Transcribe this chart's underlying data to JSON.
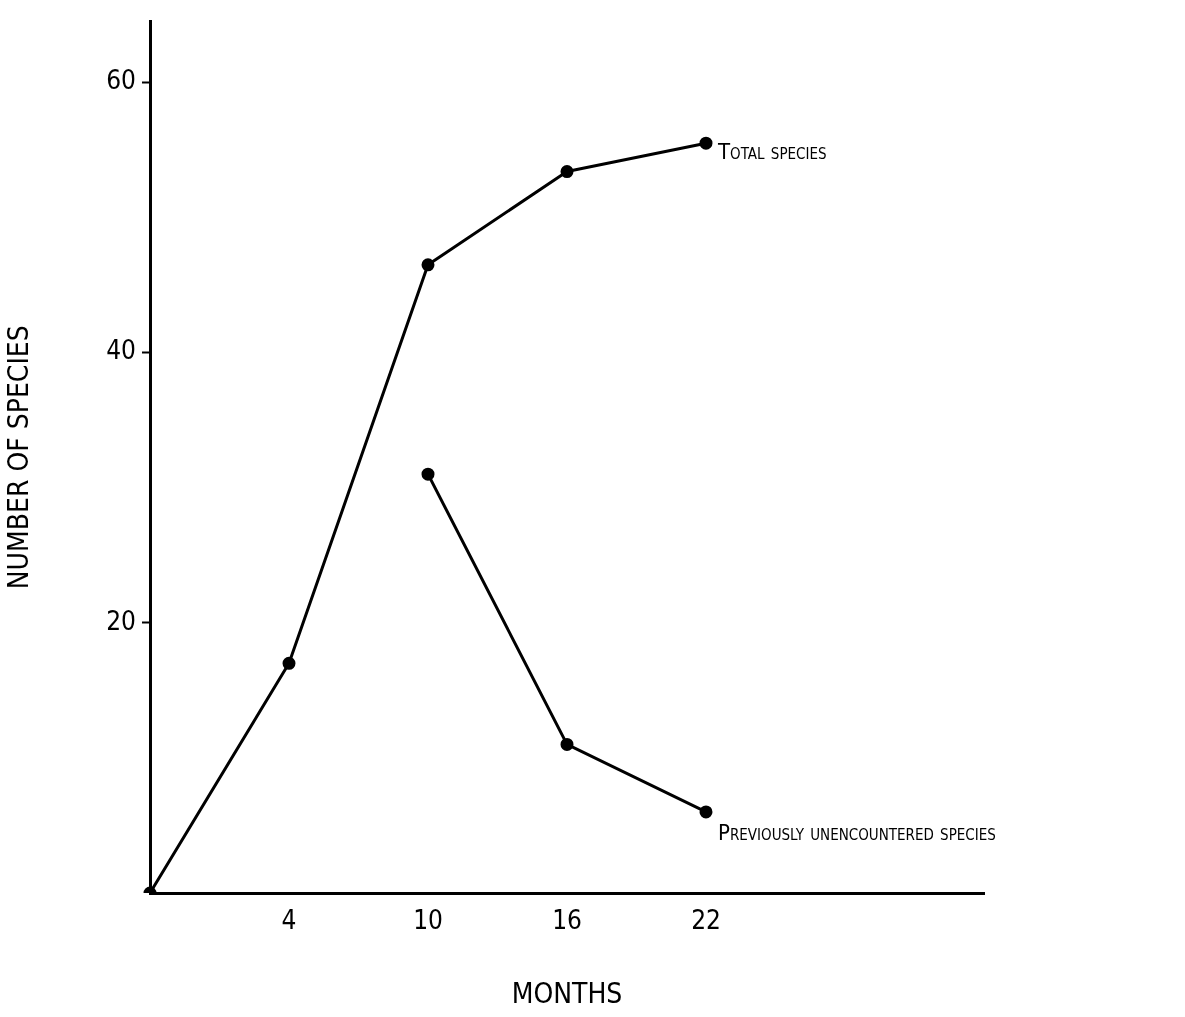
{
  "chart_data": {
    "type": "line",
    "xlabel": "MONTHS",
    "ylabel": "NUMBER OF SPECIES",
    "categories": [
      null,
      "4",
      "10",
      "16",
      "22",
      null,
      null
    ],
    "ylim": [
      0,
      64.5
    ],
    "yticks": [
      20,
      40,
      60
    ],
    "grid": false,
    "legend": false,
    "marker": "circle",
    "line_style": "solid",
    "series": [
      {
        "name": "Total species",
        "color": "#000000",
        "values": [
          0,
          17,
          46.5,
          53.4,
          55.5,
          null,
          null
        ]
      },
      {
        "name": "Previously unencountered species",
        "color": "#000000",
        "values": [
          null,
          null,
          31,
          11,
          6,
          null,
          null
        ]
      }
    ]
  }
}
